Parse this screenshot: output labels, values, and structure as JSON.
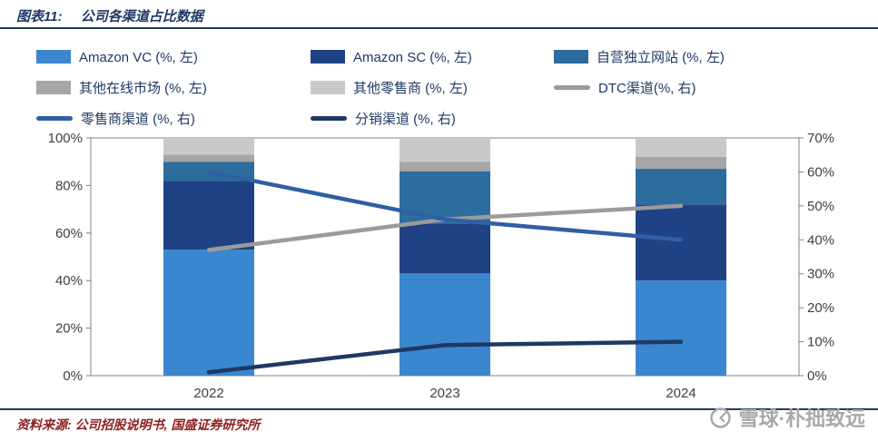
{
  "header": {
    "figure_label": "图表11:",
    "title": "公司各渠道占比数据"
  },
  "footer": {
    "source": "资料来源: 公司招股说明书, 国盛证券研究所"
  },
  "watermark": {
    "text": "雪球·朴拙致远"
  },
  "colors": {
    "accent_navy": "#1f3864",
    "source_red": "#8e1f1f",
    "watermark_gray": "#a9a9a9",
    "axis_text": "#404040",
    "frame_gray": "#808080"
  },
  "chart_data": {
    "type": "bar",
    "subtype": "stacked-bar-with-lines",
    "categories": [
      "2022",
      "2023",
      "2024"
    ],
    "bar_series": [
      {
        "name": "Amazon VC (%, 左)",
        "color": "#3a87cf",
        "values": [
          53,
          43,
          40
        ]
      },
      {
        "name": "Amazon SC (%, 左)",
        "color": "#1f4285",
        "values": [
          29,
          21,
          32
        ]
      },
      {
        "name": "自营独立网站 (%, 左)",
        "color": "#2c6d9e",
        "values": [
          8,
          22,
          15
        ]
      },
      {
        "name": "其他在线市场 (%, 左)",
        "color": "#a6a6a6",
        "values": [
          3,
          4,
          5
        ]
      },
      {
        "name": "其他零售商 (%, 左)",
        "color": "#c9c9c9",
        "values": [
          7,
          10,
          8
        ]
      }
    ],
    "line_series": [
      {
        "name": "DTC渠道(%, 右)",
        "color": "#9b9b9b",
        "values": [
          37,
          46,
          50
        ]
      },
      {
        "name": "零售商渠道 (%, 右)",
        "color": "#2f5fa5",
        "values": [
          60,
          46,
          40
        ]
      },
      {
        "name": "分销渠道 (%, 右)",
        "color": "#1f3864",
        "values": [
          1,
          9,
          10
        ]
      }
    ],
    "left_axis": {
      "min": 0,
      "max": 100,
      "ticks": [
        "0%",
        "20%",
        "40%",
        "60%",
        "80%",
        "100%"
      ]
    },
    "right_axis": {
      "min": 0,
      "max": 70,
      "ticks": [
        "0%",
        "10%",
        "20%",
        "30%",
        "40%",
        "50%",
        "60%",
        "70%"
      ]
    },
    "grid": false,
    "legend_position": "top"
  }
}
